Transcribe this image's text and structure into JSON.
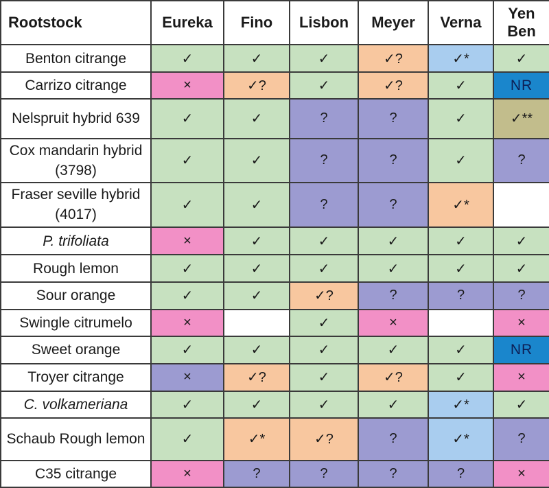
{
  "header": {
    "rootstock": "Rootstock",
    "columns": [
      "Eureka",
      "Fino",
      "Lisbon",
      "Meyer",
      "Verna",
      "Yen\nBen"
    ]
  },
  "rows": [
    {
      "name": "Benton citrange",
      "cells": [
        {
          "s": "✓",
          "c": "green"
        },
        {
          "s": "✓",
          "c": "green"
        },
        {
          "s": "✓",
          "c": "green"
        },
        {
          "s": "✓?",
          "c": "orange"
        },
        {
          "s": "✓*",
          "c": "lblue"
        },
        {
          "s": "✓",
          "c": "green"
        }
      ]
    },
    {
      "name": "Carrizo citrange",
      "cells": [
        {
          "s": "×",
          "c": "pink"
        },
        {
          "s": "✓?",
          "c": "orange"
        },
        {
          "s": "✓",
          "c": "green"
        },
        {
          "s": "✓?",
          "c": "orange"
        },
        {
          "s": "✓",
          "c": "green"
        },
        {
          "s": "NR",
          "c": "blue"
        }
      ]
    },
    {
      "name": "Nelspruit hybrid 639",
      "cells": [
        {
          "s": "✓",
          "c": "green"
        },
        {
          "s": "✓",
          "c": "green"
        },
        {
          "s": "?",
          "c": "purple"
        },
        {
          "s": "?",
          "c": "purple"
        },
        {
          "s": "✓",
          "c": "green"
        },
        {
          "s": "✓**",
          "c": "olive"
        }
      ]
    },
    {
      "name": "Cox mandarin hybrid (3798)",
      "cells": [
        {
          "s": "✓",
          "c": "green"
        },
        {
          "s": "✓",
          "c": "green"
        },
        {
          "s": "?",
          "c": "purple"
        },
        {
          "s": "?",
          "c": "purple"
        },
        {
          "s": "✓",
          "c": "green"
        },
        {
          "s": "?",
          "c": "purple"
        }
      ]
    },
    {
      "name": "Fraser seville hybrid (4017)",
      "cells": [
        {
          "s": "✓",
          "c": "green"
        },
        {
          "s": "✓",
          "c": "green"
        },
        {
          "s": "?",
          "c": "purple"
        },
        {
          "s": "?",
          "c": "purple"
        },
        {
          "s": "✓*",
          "c": "orange"
        },
        {
          "s": "",
          "c": "white"
        }
      ]
    },
    {
      "name_prefix": "P. trifoliata",
      "name": "",
      "cells": [
        {
          "s": "×",
          "c": "pink"
        },
        {
          "s": "✓",
          "c": "green"
        },
        {
          "s": "✓",
          "c": "green"
        },
        {
          "s": "✓",
          "c": "green"
        },
        {
          "s": "✓",
          "c": "green"
        },
        {
          "s": "✓",
          "c": "green"
        }
      ]
    },
    {
      "name": "Rough lemon",
      "cells": [
        {
          "s": "✓",
          "c": "green"
        },
        {
          "s": "✓",
          "c": "green"
        },
        {
          "s": "✓",
          "c": "green"
        },
        {
          "s": "✓",
          "c": "green"
        },
        {
          "s": "✓",
          "c": "green"
        },
        {
          "s": "✓",
          "c": "green"
        }
      ]
    },
    {
      "name": "Sour orange",
      "cells": [
        {
          "s": "✓",
          "c": "green"
        },
        {
          "s": "✓",
          "c": "green"
        },
        {
          "s": "✓?",
          "c": "orange"
        },
        {
          "s": "?",
          "c": "purple"
        },
        {
          "s": "?",
          "c": "purple"
        },
        {
          "s": "?",
          "c": "purple"
        }
      ]
    },
    {
      "name": "Swingle citrumelo",
      "cells": [
        {
          "s": "×",
          "c": "pink"
        },
        {
          "s": "",
          "c": "white"
        },
        {
          "s": "✓",
          "c": "green"
        },
        {
          "s": "×",
          "c": "pink"
        },
        {
          "s": "",
          "c": "white"
        },
        {
          "s": "×",
          "c": "pink"
        }
      ]
    },
    {
      "name": "Sweet orange",
      "cells": [
        {
          "s": "✓",
          "c": "green"
        },
        {
          "s": "✓",
          "c": "green"
        },
        {
          "s": "✓",
          "c": "green"
        },
        {
          "s": "✓",
          "c": "green"
        },
        {
          "s": "✓",
          "c": "green"
        },
        {
          "s": "NR",
          "c": "blue"
        }
      ]
    },
    {
      "name": "Troyer citrange",
      "cells": [
        {
          "s": "×",
          "c": "purple"
        },
        {
          "s": "✓?",
          "c": "orange"
        },
        {
          "s": "✓",
          "c": "green"
        },
        {
          "s": "✓?",
          "c": "orange"
        },
        {
          "s": "✓",
          "c": "green"
        },
        {
          "s": "×",
          "c": "pink"
        }
      ]
    },
    {
      "name_prefix": "C. volkameriana",
      "name": "",
      "cells": [
        {
          "s": "✓",
          "c": "green"
        },
        {
          "s": "✓",
          "c": "green"
        },
        {
          "s": "✓",
          "c": "green"
        },
        {
          "s": "✓",
          "c": "green"
        },
        {
          "s": "✓*",
          "c": "lblue"
        },
        {
          "s": "✓",
          "c": "green"
        }
      ]
    },
    {
      "name": "Schaub Rough lemon",
      "cells": [
        {
          "s": "✓",
          "c": "green"
        },
        {
          "s": "✓*",
          "c": "orange"
        },
        {
          "s": "✓?",
          "c": "orange"
        },
        {
          "s": "?",
          "c": "purple"
        },
        {
          "s": "✓*",
          "c": "lblue"
        },
        {
          "s": "?",
          "c": "purple"
        }
      ]
    },
    {
      "name": "C35 citrange",
      "cells": [
        {
          "s": "×",
          "c": "pink"
        },
        {
          "s": "?",
          "c": "purple"
        },
        {
          "s": "?",
          "c": "purple"
        },
        {
          "s": "?",
          "c": "purple"
        },
        {
          "s": "?",
          "c": "purple"
        },
        {
          "s": "×",
          "c": "pink"
        }
      ]
    }
  ]
}
